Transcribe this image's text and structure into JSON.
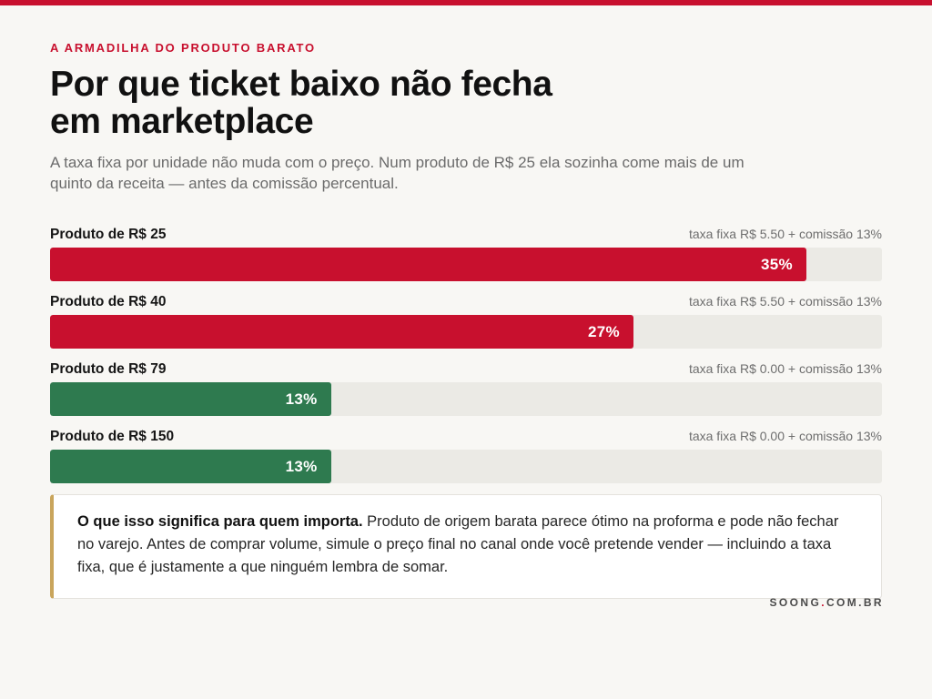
{
  "theme": {
    "accent": "#c8102e",
    "background": "#f8f7f4",
    "callout_accent": "#c9a55c"
  },
  "header": {
    "kicker": "A ARMADILHA DO PRODUTO BARATO",
    "title": "Por que ticket baixo não fecha em marketplace",
    "subtitle": "A taxa fixa por unidade não muda com o preço. Num produto de R$ 25 ela sozinha come mais de um quinto da receita — antes da comissão percentual."
  },
  "chart_data": {
    "type": "bar",
    "orientation": "horizontal",
    "categories": [
      "Produto de R$ 25",
      "Produto de R$ 40",
      "Produto de R$ 79",
      "Produto de R$ 150"
    ],
    "category_notes": [
      "taxa fixa R$ 5.50 + comissão 13%",
      "taxa fixa R$ 5.50 + comissão 13%",
      "taxa fixa R$ 0.00 + comissão 13%",
      "taxa fixa R$ 0.00 + comissão 13%"
    ],
    "values": [
      35,
      27,
      13,
      13
    ],
    "value_labels": [
      "35%",
      "27%",
      "13%",
      "13%"
    ],
    "bar_colors": [
      "#c8102e",
      "#c8102e",
      "#2e7a4f",
      "#2e7a4f"
    ],
    "xlim": [
      0,
      38.5
    ],
    "grid": false,
    "legend": "none"
  },
  "callout": {
    "lead": "O que isso significa para quem importa.",
    "body": "Produto de origem barata parece ótimo na proforma e pode não fechar no varejo. Antes de comprar volume, simule o preço final no canal onde você pretende vender — incluindo a taxa fixa, que é justamente a que ninguém lembra de somar."
  },
  "footer": {
    "brand_name": "SOONG",
    "brand_dot": ".",
    "brand_domain": "COM.BR"
  }
}
